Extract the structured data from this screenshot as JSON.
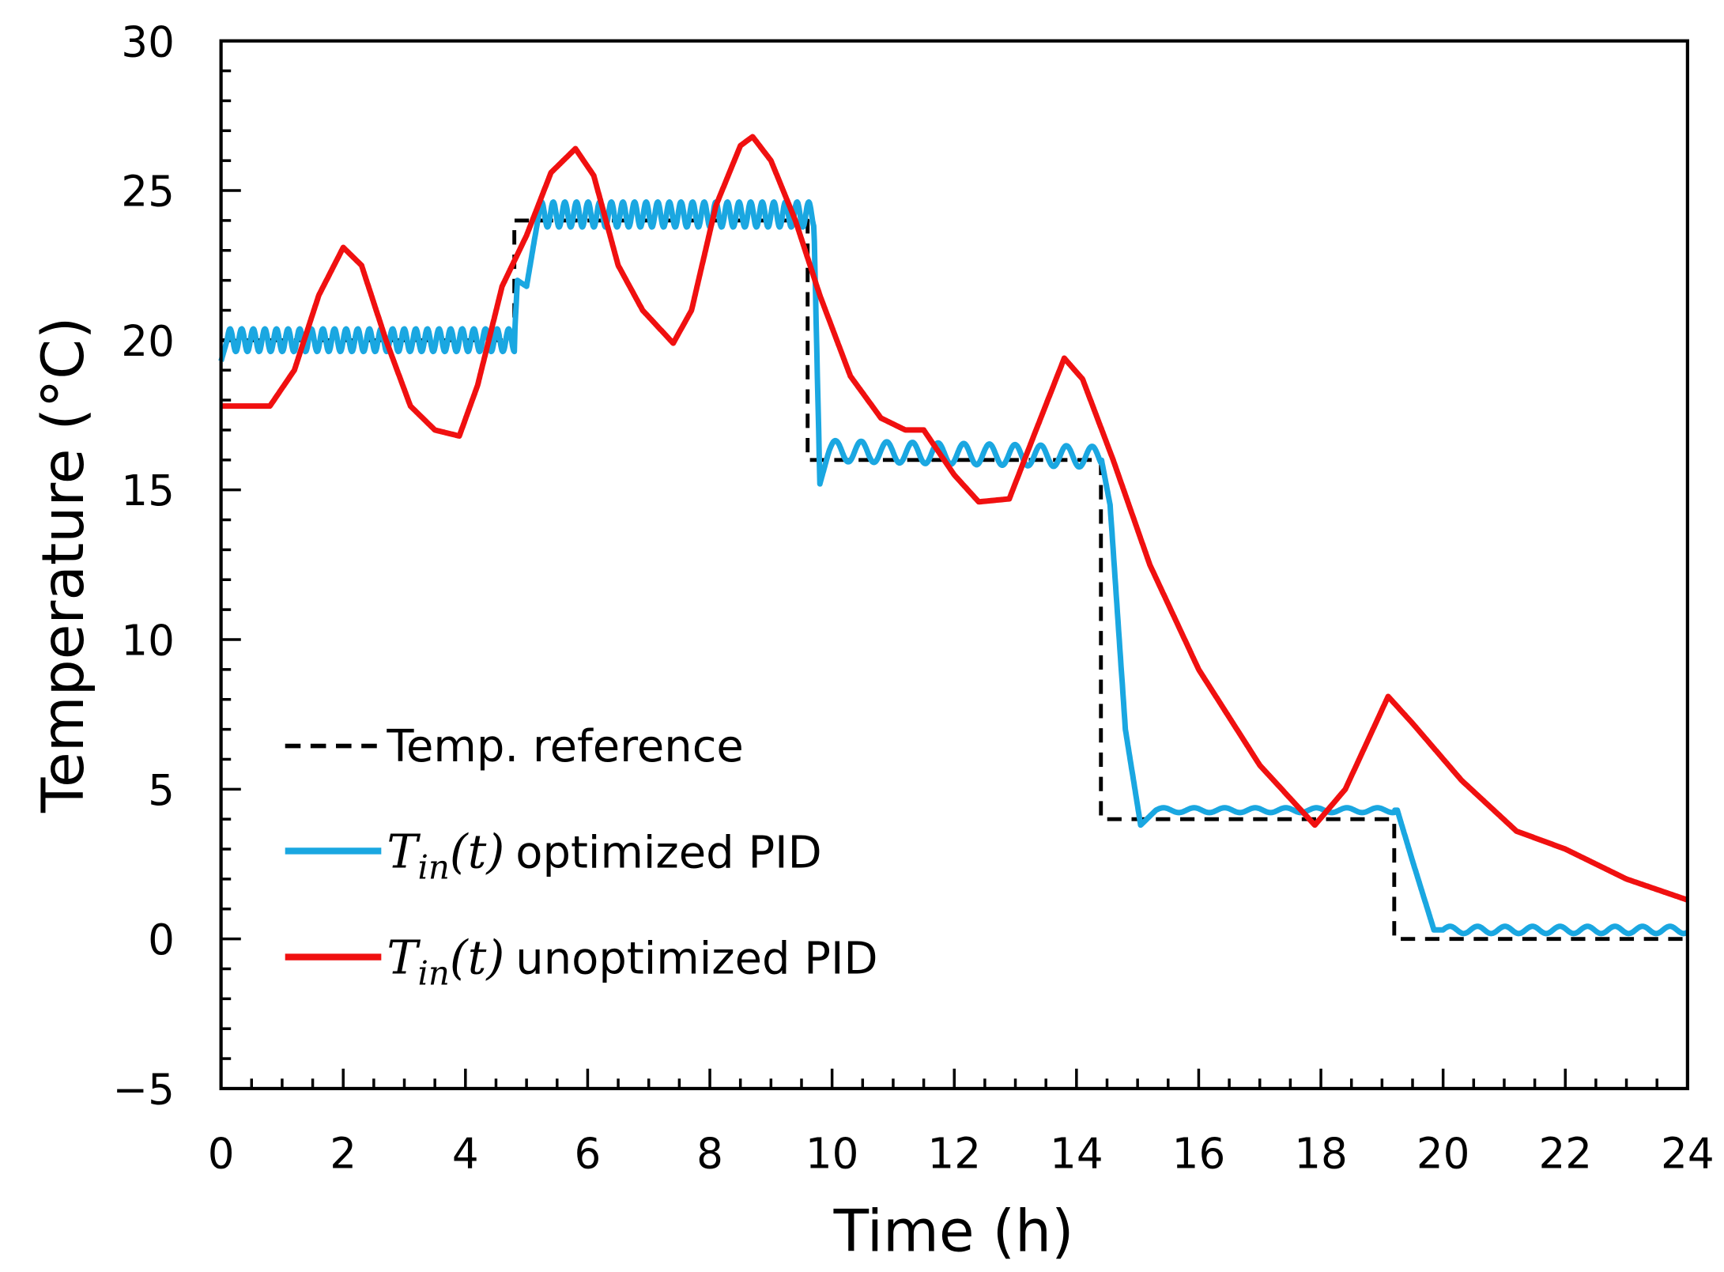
{
  "chart_data": {
    "type": "line",
    "title": "",
    "xlabel": "Time (h)",
    "ylabel": "Temperature (°C)",
    "xlim": [
      0,
      24
    ],
    "ylim": [
      -5,
      30
    ],
    "xticks": [
      0,
      2,
      4,
      6,
      8,
      10,
      12,
      14,
      16,
      18,
      20,
      22,
      24
    ],
    "yticks": [
      -5,
      0,
      5,
      10,
      15,
      20,
      25,
      30
    ],
    "ytick_labels": [
      "−5",
      "0",
      "5",
      "10",
      "15",
      "20",
      "25",
      "30"
    ],
    "grid": false,
    "legend_placement": "lower-left",
    "series": [
      {
        "name": "Temp. reference",
        "legend_math": "",
        "legend_text": "Temp. reference",
        "color": "#000000",
        "style": "dashed",
        "points": [
          [
            0,
            20
          ],
          [
            4.8,
            20
          ],
          [
            4.8,
            24
          ],
          [
            9.6,
            24
          ],
          [
            9.6,
            16
          ],
          [
            14.4,
            16
          ],
          [
            14.4,
            4
          ],
          [
            19.2,
            4
          ],
          [
            19.2,
            0
          ],
          [
            24,
            0
          ]
        ],
        "oscillations": []
      },
      {
        "name": "T_in(t) optimized PID",
        "legend_math": "T",
        "legend_sub": "in",
        "legend_arg": "(t)",
        "legend_text": "optimized PID",
        "color": "#1AA7E1",
        "style": "solid",
        "points": [
          [
            0,
            19.3
          ],
          [
            0.1,
            20
          ],
          [
            4.8,
            20
          ],
          [
            4.85,
            22
          ],
          [
            5.0,
            21.8
          ],
          [
            5.2,
            24.2
          ],
          [
            9.7,
            24.2
          ],
          [
            9.8,
            15.2
          ],
          [
            9.95,
            16.3
          ],
          [
            14.4,
            16.1
          ],
          [
            14.55,
            14.5
          ],
          [
            14.8,
            7
          ],
          [
            15.05,
            3.8
          ],
          [
            15.3,
            4.3
          ],
          [
            19.25,
            4.3
          ],
          [
            19.5,
            2.6
          ],
          [
            19.85,
            0.3
          ],
          [
            24,
            0.3
          ]
        ],
        "oscillations": [
          {
            "from": 0.1,
            "to": 4.8,
            "amplitude": 0.38,
            "period_h": 0.19,
            "decay_h": 0
          },
          {
            "from": 5.2,
            "to": 9.7,
            "amplitude": 0.42,
            "period_h": 0.19,
            "decay_h": 0
          },
          {
            "from": 9.95,
            "to": 14.4,
            "amplitude": 0.35,
            "period_h": 0.42,
            "decay_h": 0
          },
          {
            "from": 15.3,
            "to": 19.2,
            "amplitude": 0.08,
            "period_h": 0.5,
            "decay_h": 0
          },
          {
            "from": 20.0,
            "to": 24,
            "amplitude": 0.12,
            "period_h": 0.45,
            "decay_h": 0
          }
        ]
      },
      {
        "name": "T_in(t) unoptimized PID",
        "legend_math": "T",
        "legend_sub": "in",
        "legend_arg": "(t)",
        "legend_text": "unoptimized PID",
        "color": "#F01010",
        "style": "solid",
        "points": [
          [
            0,
            17.8
          ],
          [
            0.8,
            17.8
          ],
          [
            1.2,
            19
          ],
          [
            1.6,
            21.5
          ],
          [
            2,
            23.1
          ],
          [
            2.3,
            22.5
          ],
          [
            2.7,
            20
          ],
          [
            3.1,
            17.8
          ],
          [
            3.5,
            17
          ],
          [
            3.9,
            16.8
          ],
          [
            4.2,
            18.5
          ],
          [
            4.6,
            21.8
          ],
          [
            5,
            23.5
          ],
          [
            5.4,
            25.6
          ],
          [
            5.8,
            26.4
          ],
          [
            6.1,
            25.5
          ],
          [
            6.5,
            22.5
          ],
          [
            6.9,
            21
          ],
          [
            7.4,
            19.9
          ],
          [
            7.7,
            21
          ],
          [
            8.1,
            24.5
          ],
          [
            8.5,
            26.5
          ],
          [
            8.7,
            26.8
          ],
          [
            9.0,
            26
          ],
          [
            9.4,
            24
          ],
          [
            9.8,
            21.5
          ],
          [
            10.3,
            18.8
          ],
          [
            10.8,
            17.4
          ],
          [
            11.2,
            17
          ],
          [
            11.5,
            17
          ],
          [
            12,
            15.5
          ],
          [
            12.4,
            14.6
          ],
          [
            12.9,
            14.7
          ],
          [
            13.3,
            16.8
          ],
          [
            13.8,
            19.4
          ],
          [
            14.1,
            18.7
          ],
          [
            14.6,
            16
          ],
          [
            15.2,
            12.5
          ],
          [
            16,
            9
          ],
          [
            17,
            5.8
          ],
          [
            17.9,
            3.8
          ],
          [
            18.4,
            5
          ],
          [
            19.1,
            8.1
          ],
          [
            19.5,
            7.2
          ],
          [
            20.3,
            5.3
          ],
          [
            21.2,
            3.6
          ],
          [
            22,
            3
          ],
          [
            23,
            2
          ],
          [
            24,
            1.3
          ]
        ],
        "oscillations": []
      }
    ]
  }
}
